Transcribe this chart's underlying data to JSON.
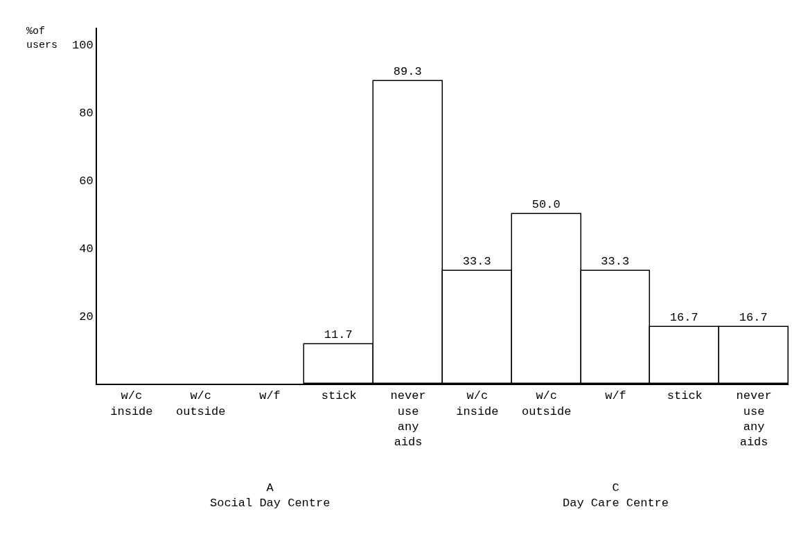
{
  "chart_data": {
    "type": "bar",
    "ylabel": "%of\nusers",
    "categories": [
      "w/c\ninside",
      "w/c\noutside",
      "w/f",
      "stick",
      "never\nuse\nany\naids",
      "w/c\ninside",
      "w/c\noutside",
      "w/f",
      "stick",
      "never\nuse\nany\naids"
    ],
    "values": [
      null,
      null,
      null,
      11.7,
      89.3,
      33.3,
      50.0,
      33.3,
      16.7,
      16.7
    ],
    "value_labels": [
      null,
      null,
      null,
      "11.7",
      "89.3",
      "33.3",
      "50.0",
      "33.3",
      "16.7",
      "16.7"
    ],
    "color": "#ffffff",
    "ylim": [
      0,
      105
    ],
    "yticks": [
      20,
      40,
      60,
      80,
      100
    ],
    "annotations": [
      "A\nSocial Day Centre",
      "C\nDay Care Centre"
    ],
    "legend": false
  }
}
